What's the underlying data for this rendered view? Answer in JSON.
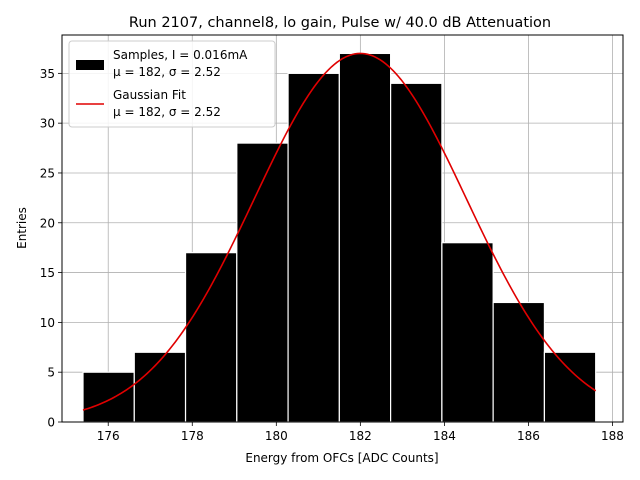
{
  "chart_data": {
    "type": "bar",
    "title": "Run 2107, channel8, lo gain, Pulse w/ 40.0 dB Attenuation",
    "xlabel": "Energy from OFCs [ADC Counts]",
    "ylabel": "Entries",
    "xlim": [
      174.9,
      188.25
    ],
    "ylim": [
      0,
      38.85
    ],
    "xticks": [
      176,
      178,
      180,
      182,
      184,
      186,
      188
    ],
    "yticks": [
      0,
      5,
      10,
      15,
      20,
      25,
      30,
      35
    ],
    "grid": true,
    "legend_position": "top-left",
    "histogram": {
      "name": "Samples, I = 0.016mA",
      "name_line2": "μ = 182, σ = 2.52",
      "color": "#000000",
      "edge_color": "#ffffff",
      "bins": [
        {
          "x0": 175.4,
          "x1": 176.62,
          "count": 5
        },
        {
          "x0": 176.62,
          "x1": 177.84,
          "count": 7
        },
        {
          "x0": 177.84,
          "x1": 179.06,
          "count": 17
        },
        {
          "x0": 179.06,
          "x1": 180.28,
          "count": 28
        },
        {
          "x0": 180.28,
          "x1": 181.5,
          "count": 35
        },
        {
          "x0": 181.5,
          "x1": 182.72,
          "count": 37
        },
        {
          "x0": 182.72,
          "x1": 183.94,
          "count": 34
        },
        {
          "x0": 183.94,
          "x1": 185.16,
          "count": 18
        },
        {
          "x0": 185.16,
          "x1": 186.38,
          "count": 12
        },
        {
          "x0": 186.38,
          "x1": 187.6,
          "count": 7
        }
      ]
    },
    "fit": {
      "name": "Gaussian Fit",
      "name_line2": "μ = 182, σ = 2.52",
      "color": "#e00000",
      "type": "gaussian",
      "amplitude": 37.0,
      "mean": 182.0,
      "sigma": 2.52,
      "x_range": [
        175.4,
        187.6
      ]
    }
  }
}
